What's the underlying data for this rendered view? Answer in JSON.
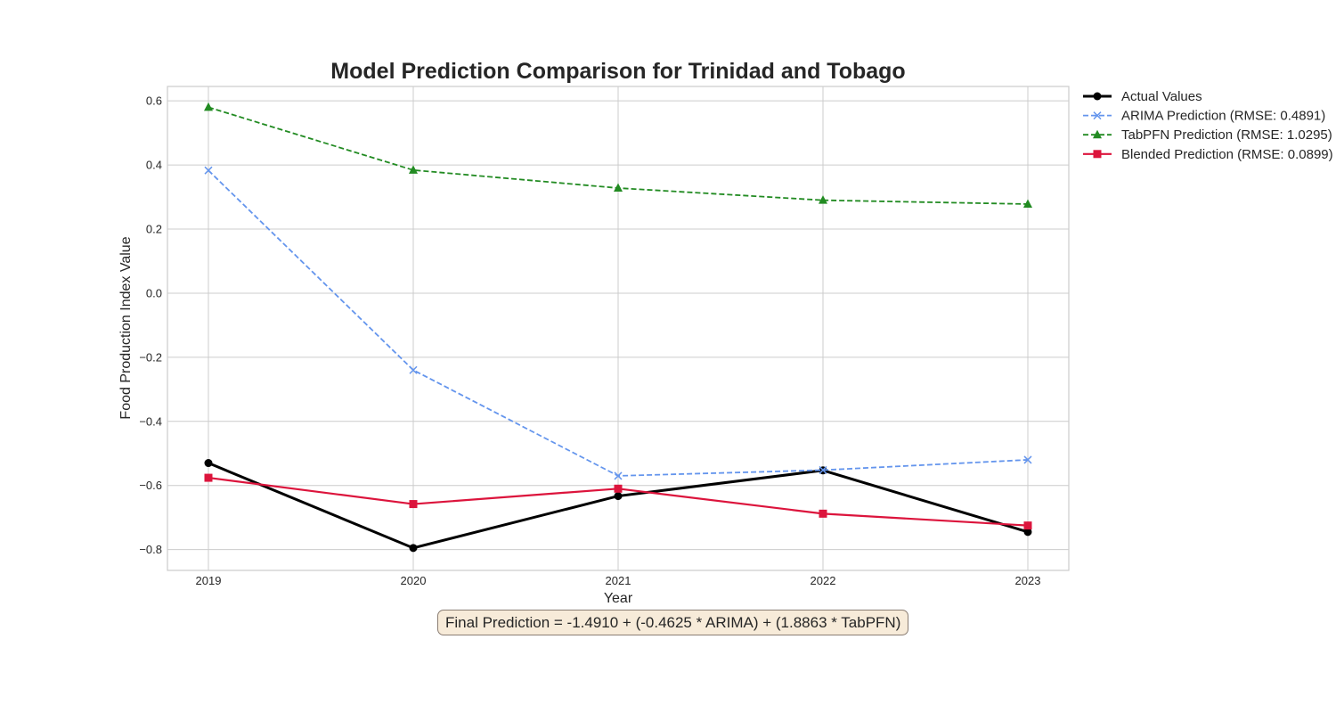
{
  "chart_data": {
    "type": "line",
    "title": "Model Prediction Comparison for Trinidad and Tobago",
    "xlabel": "Year",
    "ylabel": "Food Production Index Value",
    "x": [
      2019,
      2020,
      2021,
      2022,
      2023
    ],
    "xlim": [
      2018.8,
      2023.2
    ],
    "ylim": [
      -0.865,
      0.645
    ],
    "yticks": [
      -0.8,
      -0.6,
      -0.4,
      -0.2,
      0.0,
      0.2,
      0.4,
      0.6
    ],
    "ytick_labels": [
      "−0.8",
      "−0.6",
      "−0.4",
      "−0.2",
      "0.0",
      "0.2",
      "0.4",
      "0.6"
    ],
    "xtick_labels": [
      "2019",
      "2020",
      "2021",
      "2022",
      "2023"
    ],
    "grid": true,
    "legend_position": "outside-top-right",
    "series": [
      {
        "name": "Actual Values",
        "values": [
          -0.53,
          -0.795,
          -0.633,
          -0.553,
          -0.745
        ],
        "color": "#000000",
        "style": "solid",
        "marker": "circle"
      },
      {
        "name": "ARIMA Prediction (RMSE: 0.4891)",
        "values": [
          0.383,
          -0.24,
          -0.57,
          -0.552,
          -0.52
        ],
        "color": "#6495ed",
        "style": "dashed",
        "marker": "x"
      },
      {
        "name": "TabPFN Prediction (RMSE: 1.0295)",
        "values": [
          0.58,
          0.384,
          0.328,
          0.29,
          0.278
        ],
        "color": "#228b22",
        "style": "dashed",
        "marker": "triangle"
      },
      {
        "name": "Blended Prediction (RMSE: 0.0899)",
        "values": [
          -0.576,
          -0.658,
          -0.61,
          -0.688,
          -0.725
        ],
        "color": "#dc143c",
        "style": "solid",
        "marker": "square"
      }
    ],
    "annotation": "Final Prediction = -1.4910 + (-0.4625 * ARIMA) + (1.8863 * TabPFN)"
  }
}
